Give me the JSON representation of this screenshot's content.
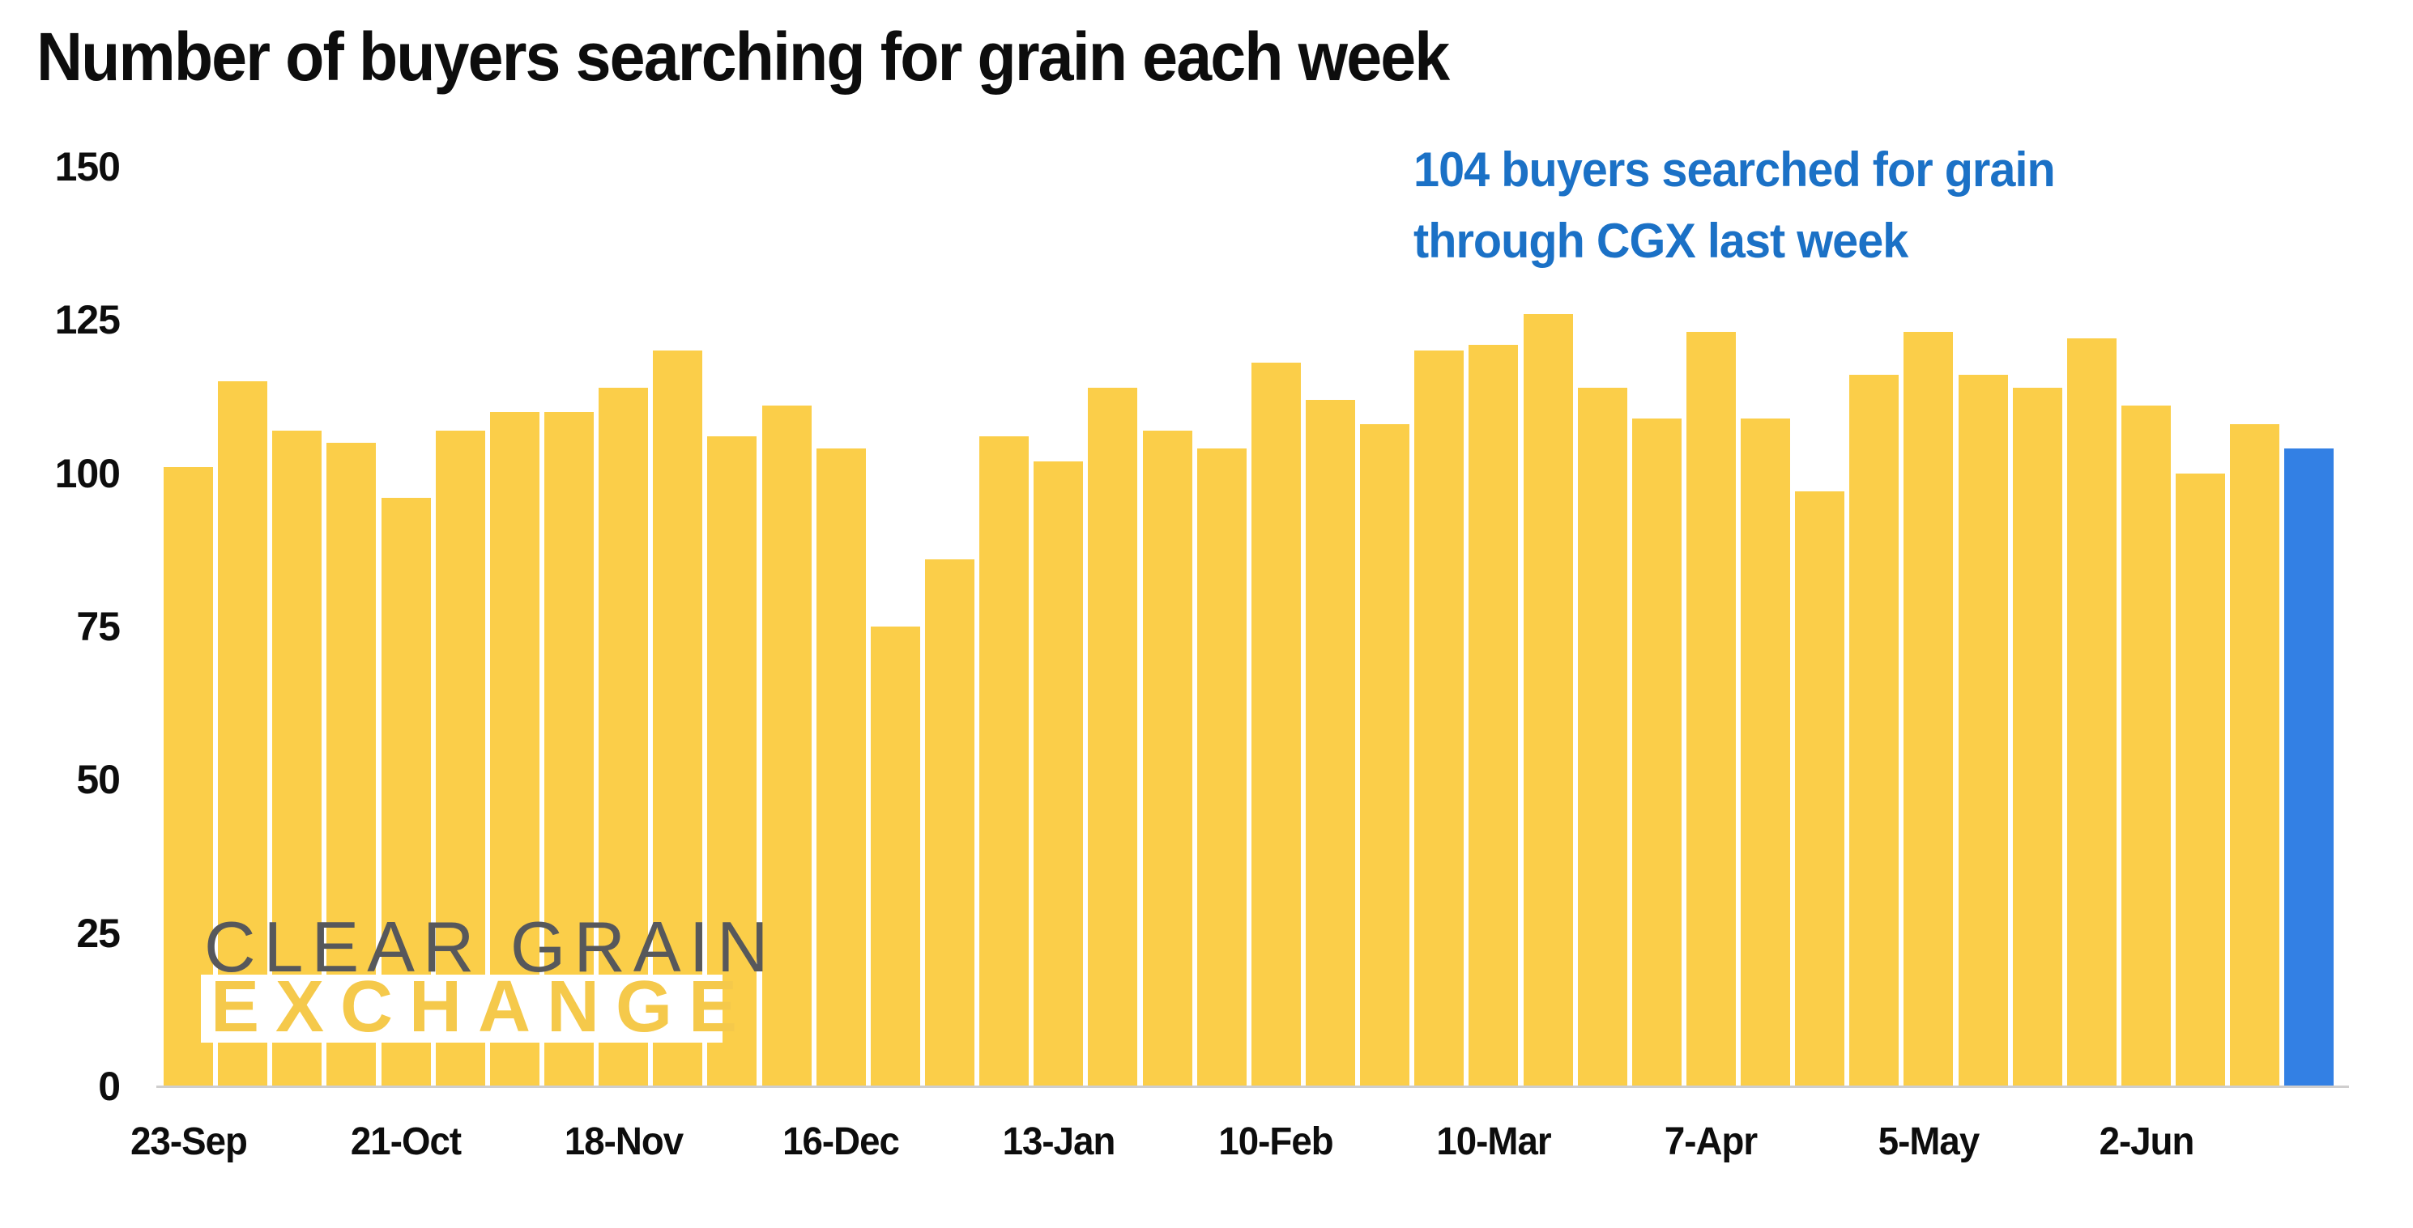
{
  "page": {
    "background": "#ffffff"
  },
  "title": {
    "text": "Number of buyers searching for grain each week"
  },
  "annotation": {
    "line1": "104 buyers searched for grain",
    "line2": "through CGX last week",
    "color": "#1b71c6"
  },
  "watermark": {
    "line1": "CLEAR GRAIN",
    "line2": "EXCHANGE",
    "gray_color": "#57585b",
    "yellow_color": "#f5c94b"
  },
  "chart_data": {
    "type": "bar",
    "title": "Number of buyers searching for grain each week",
    "xlabel": "",
    "ylabel": "",
    "ylim": [
      0,
      150
    ],
    "yticks": [
      0,
      25,
      50,
      75,
      100,
      125,
      150
    ],
    "grid": false,
    "legend": null,
    "x_tick_labels": [
      "23-Sep",
      "21-Oct",
      "18-Nov",
      "16-Dec",
      "13-Jan",
      "10-Feb",
      "10-Mar",
      "7-Apr",
      "5-May",
      "2-Jun"
    ],
    "x_tick_week_indices": [
      0,
      4,
      8,
      12,
      16,
      20,
      24,
      28,
      32,
      36
    ],
    "values": [
      101,
      115,
      107,
      105,
      96,
      107,
      110,
      110,
      114,
      120,
      106,
      111,
      104,
      75,
      86,
      106,
      102,
      114,
      107,
      104,
      118,
      112,
      108,
      120,
      121,
      126,
      114,
      109,
      123,
      109,
      97,
      116,
      123,
      116,
      114,
      122,
      111,
      100,
      108,
      104
    ],
    "highlight_index": 39,
    "highlight_value": 104,
    "bar_color": "#fbce49",
    "highlight_color": "#3380e4"
  }
}
